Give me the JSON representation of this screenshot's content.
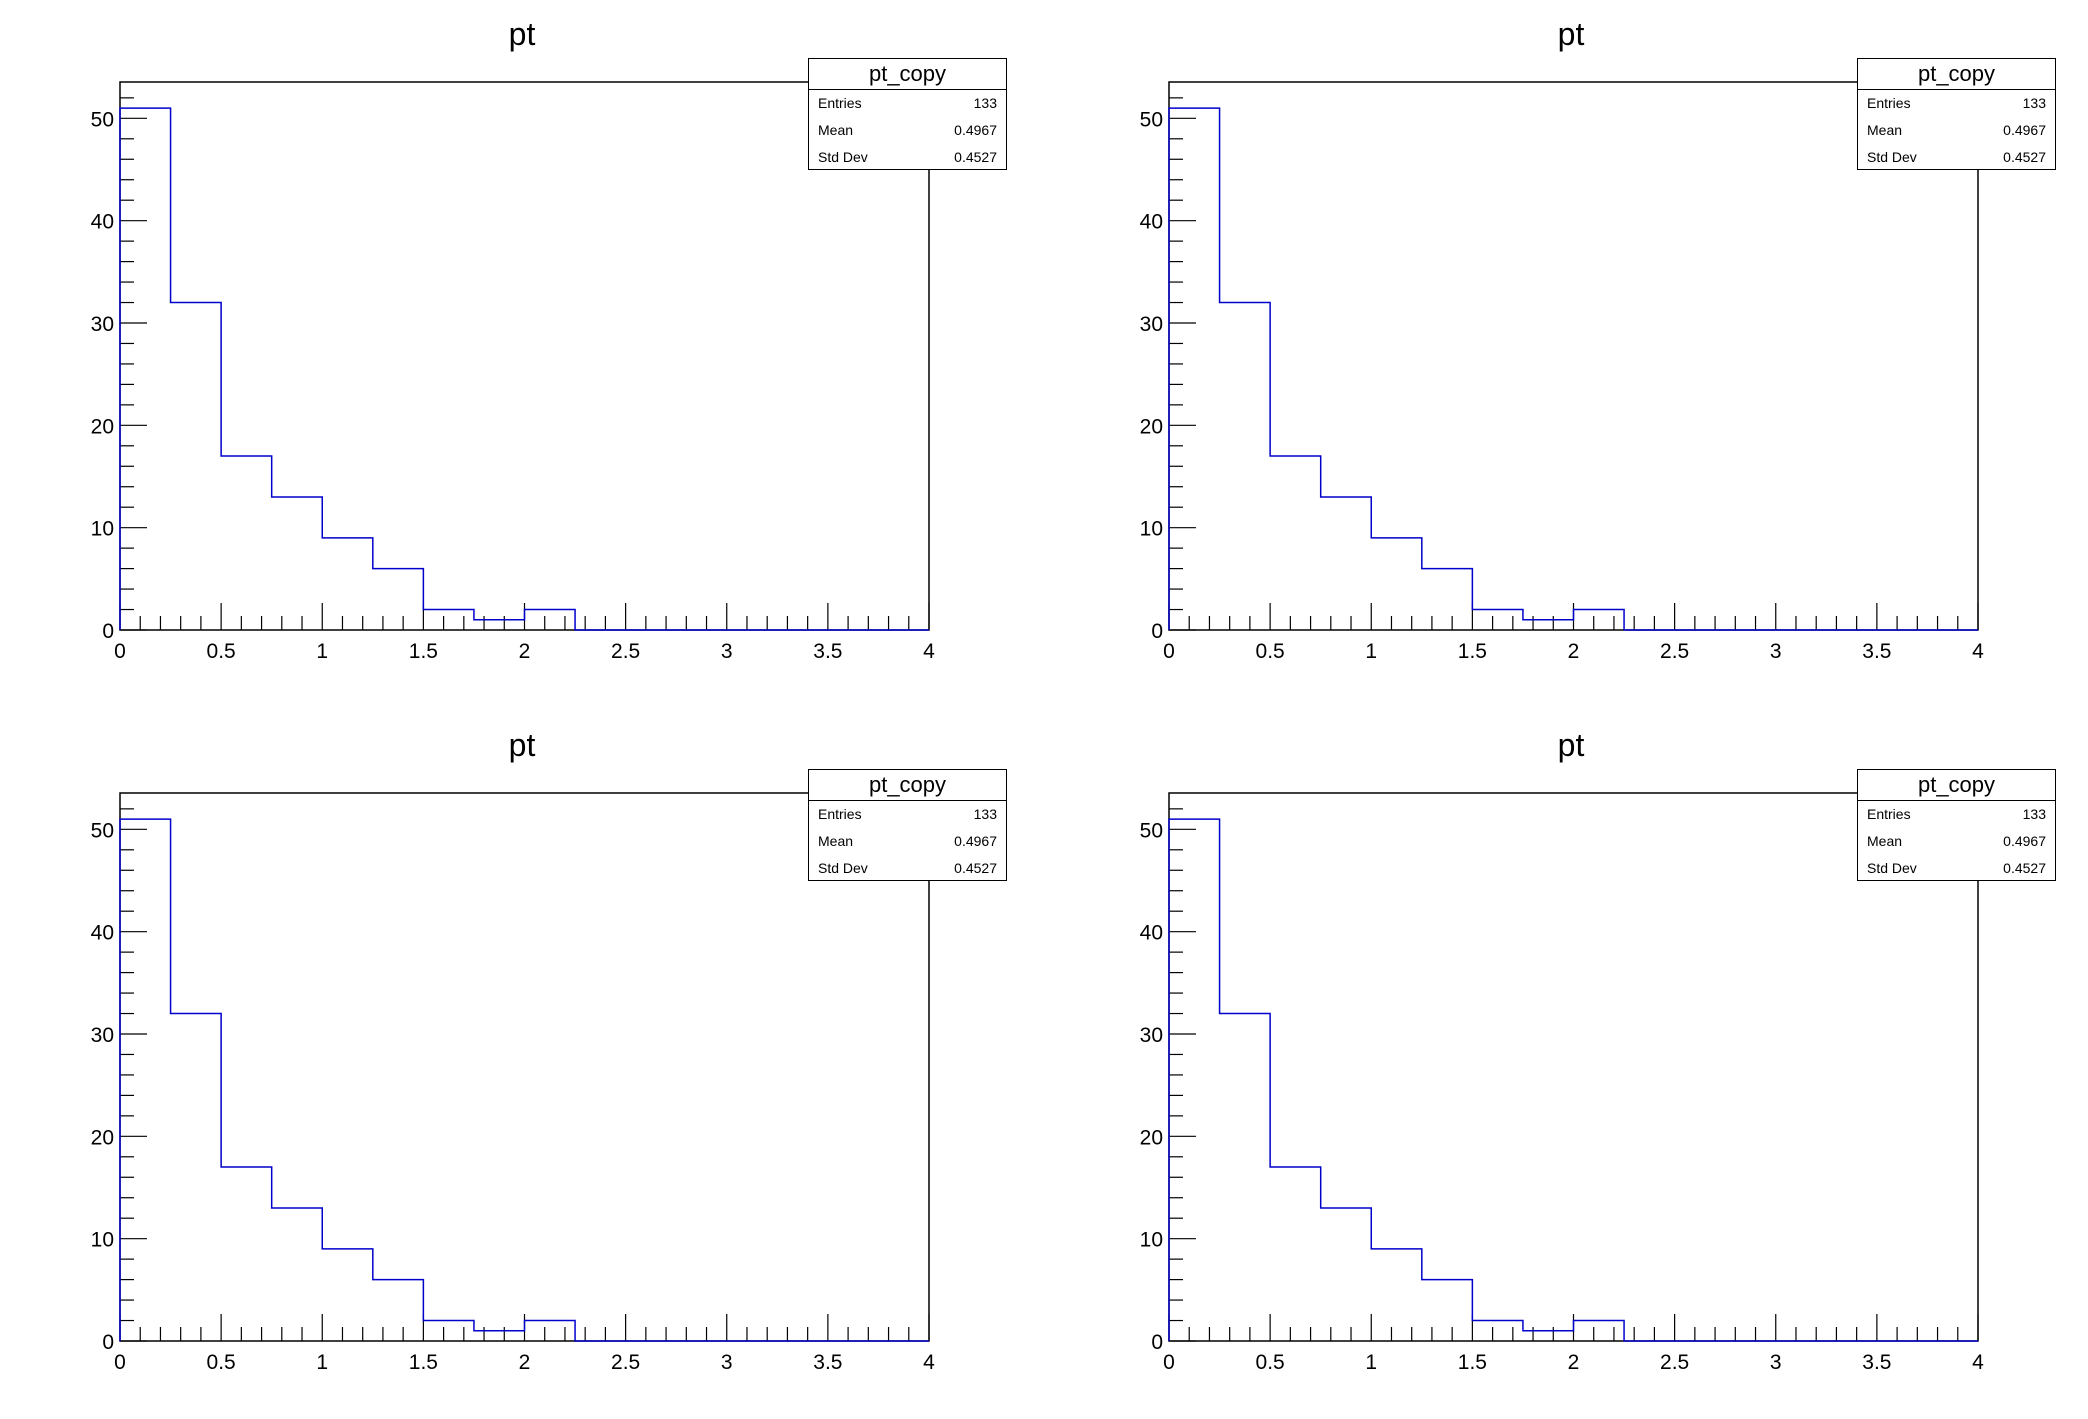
{
  "chart_data": [
    {
      "type": "bar",
      "title": "pt",
      "xlabel": "",
      "ylabel": "",
      "bin_edges": [
        0,
        0.25,
        0.5,
        0.75,
        1,
        1.25,
        1.5,
        1.75,
        2,
        2.25,
        2.5,
        2.75,
        3,
        3.25,
        3.5,
        3.75,
        4
      ],
      "values": [
        51,
        32,
        17,
        13,
        9,
        6,
        2,
        1,
        2,
        0,
        0,
        0,
        0,
        0,
        0,
        0
      ],
      "xlim": [
        0,
        4
      ],
      "ylim": [
        0,
        53.55
      ],
      "xticks": [
        "0",
        "0.5",
        "1",
        "1.5",
        "2",
        "2.5",
        "3",
        "3.5",
        "4"
      ],
      "yticks": [
        "0",
        "10",
        "20",
        "30",
        "40",
        "50"
      ],
      "line_color": "#0000cc",
      "stats": {
        "name": "pt_copy",
        "entries_label": "Entries",
        "entries": "133",
        "mean_label": "Mean",
        "mean": "0.4967",
        "std_label": "Std Dev",
        "std": "0.4527"
      }
    },
    {
      "type": "bar",
      "title": "pt",
      "xlabel": "",
      "ylabel": "",
      "bin_edges": [
        0,
        0.25,
        0.5,
        0.75,
        1,
        1.25,
        1.5,
        1.75,
        2,
        2.25,
        2.5,
        2.75,
        3,
        3.25,
        3.5,
        3.75,
        4
      ],
      "values": [
        51,
        32,
        17,
        13,
        9,
        6,
        2,
        1,
        2,
        0,
        0,
        0,
        0,
        0,
        0,
        0
      ],
      "xlim": [
        0,
        4
      ],
      "ylim": [
        0,
        53.55
      ],
      "xticks": [
        "0",
        "0.5",
        "1",
        "1.5",
        "2",
        "2.5",
        "3",
        "3.5",
        "4"
      ],
      "yticks": [
        "0",
        "10",
        "20",
        "30",
        "40",
        "50"
      ],
      "line_color": "#0000cc",
      "stats": {
        "name": "pt_copy",
        "entries_label": "Entries",
        "entries": "133",
        "mean_label": "Mean",
        "mean": "0.4967",
        "std_label": "Std Dev",
        "std": "0.4527"
      }
    },
    {
      "type": "bar",
      "title": "pt",
      "xlabel": "",
      "ylabel": "",
      "bin_edges": [
        0,
        0.25,
        0.5,
        0.75,
        1,
        1.25,
        1.5,
        1.75,
        2,
        2.25,
        2.5,
        2.75,
        3,
        3.25,
        3.5,
        3.75,
        4
      ],
      "values": [
        51,
        32,
        17,
        13,
        9,
        6,
        2,
        1,
        2,
        0,
        0,
        0,
        0,
        0,
        0,
        0
      ],
      "xlim": [
        0,
        4
      ],
      "ylim": [
        0,
        53.55
      ],
      "xticks": [
        "0",
        "0.5",
        "1",
        "1.5",
        "2",
        "2.5",
        "3",
        "3.5",
        "4"
      ],
      "yticks": [
        "0",
        "10",
        "20",
        "30",
        "40",
        "50"
      ],
      "line_color": "#0000cc",
      "stats": {
        "name": "pt_copy",
        "entries_label": "Entries",
        "entries": "133",
        "mean_label": "Mean",
        "mean": "0.4967",
        "std_label": "Std Dev",
        "std": "0.4527"
      }
    },
    {
      "type": "bar",
      "title": "pt",
      "xlabel": "",
      "ylabel": "",
      "bin_edges": [
        0,
        0.25,
        0.5,
        0.75,
        1,
        1.25,
        1.5,
        1.75,
        2,
        2.25,
        2.5,
        2.75,
        3,
        3.25,
        3.5,
        3.75,
        4
      ],
      "values": [
        51,
        32,
        17,
        13,
        9,
        6,
        2,
        1,
        2,
        0,
        0,
        0,
        0,
        0,
        0,
        0
      ],
      "xlim": [
        0,
        4
      ],
      "ylim": [
        0,
        53.55
      ],
      "xticks": [
        "0",
        "0.5",
        "1",
        "1.5",
        "2",
        "2.5",
        "3",
        "3.5",
        "4"
      ],
      "yticks": [
        "0",
        "10",
        "20",
        "30",
        "40",
        "50"
      ],
      "line_color": "#0000cc",
      "stats": {
        "name": "pt_copy",
        "entries_label": "Entries",
        "entries": "133",
        "mean_label": "Mean",
        "mean": "0.4967",
        "std_label": "Std Dev",
        "std": "0.4527"
      }
    }
  ]
}
